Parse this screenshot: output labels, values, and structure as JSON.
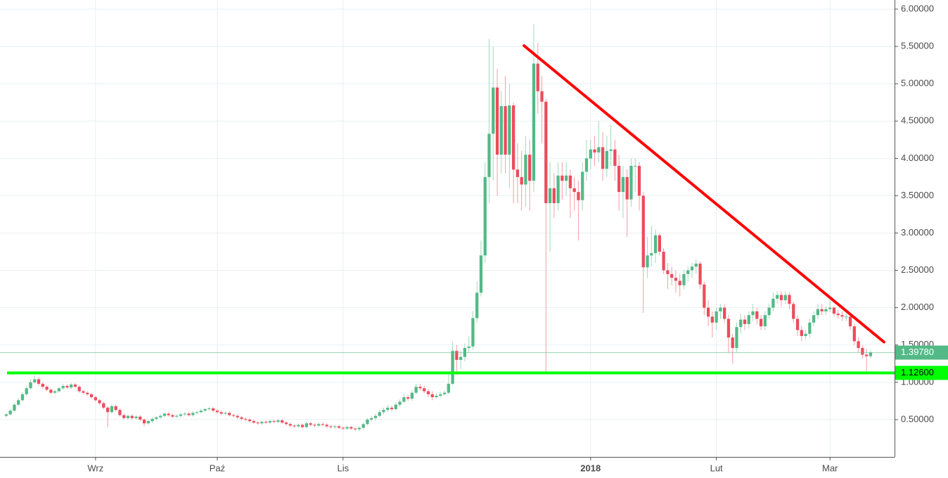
{
  "chart_data": {
    "type": "candlestick",
    "up_color": "#53b987",
    "down_color": "#eb4d5c",
    "grid": true,
    "ylim": [
      0,
      6.1224
    ],
    "yticks": [
      {
        "value": 0.5,
        "label": "0.50000"
      },
      {
        "value": 1,
        "label": "1.00000"
      },
      {
        "value": 1.5,
        "label": "1.50000"
      },
      {
        "value": 2,
        "label": "2.00000"
      },
      {
        "value": 2.5,
        "label": "2.50000"
      },
      {
        "value": 3,
        "label": "3.00000"
      },
      {
        "value": 3.5,
        "label": "3.50000"
      },
      {
        "value": 4,
        "label": "4.00000"
      },
      {
        "value": 4.5,
        "label": "4.50000"
      },
      {
        "value": 5,
        "label": "5.00000"
      },
      {
        "value": 5.5,
        "label": "5.50000"
      },
      {
        "value": 6,
        "label": "6.00000"
      }
    ],
    "categories": [
      null,
      null,
      null,
      null,
      null,
      null,
      null,
      null,
      null,
      null,
      null,
      null,
      null,
      null,
      null,
      null,
      null,
      null,
      null,
      null,
      null,
      null,
      "Wrz",
      null,
      null,
      null,
      null,
      null,
      null,
      null,
      null,
      null,
      null,
      null,
      null,
      null,
      null,
      null,
      null,
      null,
      null,
      null,
      null,
      null,
      null,
      null,
      null,
      null,
      null,
      null,
      null,
      null,
      "Paź",
      null,
      null,
      null,
      null,
      null,
      null,
      null,
      null,
      null,
      null,
      null,
      null,
      null,
      null,
      null,
      null,
      null,
      null,
      null,
      null,
      null,
      null,
      null,
      null,
      null,
      null,
      null,
      null,
      null,
      null,
      "Lis",
      null,
      null,
      null,
      null,
      null,
      null,
      null,
      null,
      null,
      null,
      null,
      null,
      null,
      null,
      null,
      null,
      null,
      null,
      null,
      null,
      null,
      null,
      null,
      null,
      null,
      null,
      null,
      null,
      null,
      null,
      null,
      null,
      null,
      null,
      null,
      null,
      null,
      null,
      null,
      null,
      null,
      null,
      null,
      null,
      null,
      null,
      null,
      null,
      null,
      null,
      null,
      null,
      null,
      null,
      null,
      null,
      null,
      null,
      null,
      null,
      "2018",
      null,
      null,
      null,
      null,
      null,
      null,
      null,
      null,
      null,
      null,
      null,
      null,
      null,
      null,
      null,
      null,
      null,
      null,
      null,
      null,
      null,
      null,
      null,
      null,
      null,
      null,
      null,
      null,
      null,
      null,
      "Lut",
      null,
      null,
      null,
      null,
      null,
      null,
      null,
      null,
      null,
      null,
      null,
      null,
      null,
      null,
      null,
      null,
      null,
      null,
      null,
      null,
      null,
      null,
      null,
      null,
      null,
      null,
      null,
      "Mar",
      null,
      null,
      null,
      null,
      null,
      null,
      null,
      null,
      null,
      null
    ],
    "open": [
      0.55,
      0.57,
      0.62,
      0.7,
      0.76,
      0.84,
      0.92,
      1.0,
      1.04,
      0.98,
      0.94,
      0.9,
      0.86,
      0.88,
      0.92,
      0.95,
      0.93,
      0.97,
      0.94,
      0.88,
      0.86,
      0.84,
      0.8,
      0.76,
      0.72,
      0.66,
      0.6,
      0.68,
      0.63,
      0.56,
      0.52,
      0.55,
      0.52,
      0.54,
      0.5,
      0.45,
      0.48,
      0.51,
      0.53,
      0.55,
      0.58,
      0.56,
      0.54,
      0.55,
      0.57,
      0.58,
      0.56,
      0.59,
      0.6,
      0.62,
      0.64,
      0.65,
      0.62,
      0.6,
      0.58,
      0.59,
      0.56,
      0.55,
      0.53,
      0.51,
      0.5,
      0.48,
      0.46,
      0.45,
      0.47,
      0.46,
      0.48,
      0.47,
      0.49,
      0.46,
      0.44,
      0.42,
      0.41,
      0.43,
      0.4,
      0.45,
      0.43,
      0.42,
      0.44,
      0.43,
      0.41,
      0.4,
      0.41,
      0.39,
      0.38,
      0.4,
      0.38,
      0.37,
      0.39,
      0.44,
      0.5,
      0.52,
      0.55,
      0.6,
      0.63,
      0.66,
      0.64,
      0.7,
      0.74,
      0.8,
      0.78,
      0.86,
      0.94,
      0.92,
      0.88,
      0.84,
      0.8,
      0.82,
      0.84,
      0.86,
      0.98,
      1.42,
      1.3,
      1.34,
      1.46,
      1.48,
      1.86,
      2.2,
      2.7,
      3.75,
      4.33,
      4.95,
      4.05,
      4.7,
      4.05,
      4.71,
      3.85,
      3.75,
      3.65,
      4.05,
      3.7,
      5.27,
      4.9,
      4.76,
      3.4,
      3.6,
      3.4,
      3.77,
      3.7,
      3.77,
      3.6,
      3.55,
      3.44,
      3.82,
      4.0,
      4.12,
      4.08,
      4.15,
      3.86,
      4.1,
      4.12,
      3.9,
      3.55,
      3.75,
      3.45,
      3.9,
      3.9,
      3.5,
      2.54,
      2.7,
      2.73,
      2.97,
      2.75,
      2.5,
      2.45,
      2.4,
      2.36,
      2.3,
      2.45,
      2.5,
      2.55,
      2.59,
      2.31,
      2.0,
      1.88,
      1.8,
      1.95,
      2.0,
      1.85,
      1.6,
      1.46,
      1.74,
      1.84,
      1.78,
      1.9,
      1.95,
      1.85,
      1.75,
      1.9,
      2.0,
      2.12,
      2.17,
      2.1,
      2.17,
      2.05,
      1.85,
      1.7,
      1.62,
      1.65,
      1.8,
      1.9,
      1.98,
      1.95,
      1.98,
      2.0,
      1.92,
      1.9,
      1.88,
      1.88,
      1.75,
      1.55,
      1.46,
      1.37,
      1.35
    ],
    "high": [
      0.59,
      0.64,
      0.72,
      0.79,
      0.87,
      0.95,
      1.04,
      1.09,
      1.07,
      1.0,
      0.96,
      0.92,
      0.9,
      0.94,
      0.98,
      0.97,
      0.99,
      0.99,
      0.96,
      0.9,
      0.88,
      0.86,
      0.82,
      0.78,
      0.74,
      0.68,
      0.71,
      0.7,
      0.65,
      0.58,
      0.57,
      0.57,
      0.56,
      0.56,
      0.52,
      0.5,
      0.53,
      0.55,
      0.57,
      0.6,
      0.6,
      0.58,
      0.57,
      0.59,
      0.6,
      0.6,
      0.61,
      0.62,
      0.64,
      0.66,
      0.67,
      0.67,
      0.64,
      0.62,
      0.61,
      0.61,
      0.58,
      0.57,
      0.55,
      0.53,
      0.52,
      0.5,
      0.48,
      0.49,
      0.49,
      0.5,
      0.5,
      0.51,
      0.51,
      0.48,
      0.46,
      0.44,
      0.45,
      0.45,
      0.47,
      0.47,
      0.45,
      0.46,
      0.46,
      0.45,
      0.43,
      0.43,
      0.43,
      0.41,
      0.42,
      0.42,
      0.4,
      0.41,
      0.46,
      0.52,
      0.55,
      0.58,
      0.63,
      0.66,
      0.7,
      0.69,
      0.73,
      0.77,
      0.84,
      0.83,
      0.89,
      0.98,
      0.98,
      0.95,
      0.91,
      0.88,
      0.85,
      0.87,
      0.89,
      1.12,
      1.55,
      1.5,
      1.42,
      1.52,
      1.62,
      1.95,
      2.35,
      2.9,
      3.95,
      5.6,
      5.5,
      5.2,
      4.9,
      5.1,
      5.0,
      4.75,
      4.2,
      4.1,
      4.3,
      4.25,
      5.8,
      5.55,
      5.1,
      4.8,
      3.95,
      3.8,
      3.95,
      3.95,
      3.95,
      3.85,
      3.75,
      3.7,
      3.95,
      4.25,
      4.25,
      4.3,
      4.5,
      4.35,
      4.3,
      4.45,
      4.25,
      4.05,
      3.9,
      3.85,
      4.0,
      4.0,
      3.95,
      3.55,
      2.95,
      3.1,
      3.05,
      3.0,
      2.8,
      2.6,
      2.55,
      2.5,
      2.45,
      2.5,
      2.55,
      2.6,
      2.65,
      2.62,
      2.35,
      2.1,
      1.95,
      2.0,
      2.05,
      2.05,
      1.9,
      1.65,
      1.8,
      1.92,
      1.9,
      1.95,
      2.05,
      2.0,
      1.9,
      1.95,
      2.05,
      2.2,
      2.22,
      2.22,
      2.22,
      2.2,
      2.08,
      1.9,
      1.75,
      1.7,
      1.85,
      1.95,
      2.05,
      2.05,
      2.02,
      2.1,
      2.02,
      1.97,
      1.95,
      1.92,
      1.9,
      1.78,
      1.6,
      1.5,
      1.45,
      1.43
    ],
    "low": [
      0.53,
      0.56,
      0.6,
      0.68,
      0.74,
      0.82,
      0.9,
      0.98,
      0.95,
      0.91,
      0.88,
      0.84,
      0.84,
      0.86,
      0.9,
      0.91,
      0.91,
      0.92,
      0.86,
      0.84,
      0.82,
      0.78,
      0.74,
      0.7,
      0.64,
      0.4,
      0.58,
      0.61,
      0.54,
      0.5,
      0.5,
      0.5,
      0.5,
      0.48,
      0.41,
      0.43,
      0.46,
      0.49,
      0.51,
      0.53,
      0.54,
      0.52,
      0.52,
      0.53,
      0.55,
      0.54,
      0.54,
      0.57,
      0.58,
      0.6,
      0.62,
      0.6,
      0.58,
      0.56,
      0.56,
      0.54,
      0.53,
      0.51,
      0.49,
      0.48,
      0.46,
      0.44,
      0.43,
      0.43,
      0.44,
      0.44,
      0.45,
      0.45,
      0.44,
      0.42,
      0.4,
      0.39,
      0.39,
      0.38,
      0.38,
      0.41,
      0.4,
      0.4,
      0.41,
      0.39,
      0.38,
      0.38,
      0.37,
      0.36,
      0.36,
      0.36,
      0.35,
      0.35,
      0.37,
      0.42,
      0.47,
      0.49,
      0.53,
      0.57,
      0.6,
      0.61,
      0.62,
      0.67,
      0.72,
      0.75,
      0.75,
      0.84,
      0.89,
      0.85,
      0.8,
      0.76,
      0.78,
      0.8,
      0.82,
      0.84,
      0.96,
      1.1,
      1.18,
      1.28,
      1.4,
      1.44,
      1.8,
      2.15,
      2.6,
      3.4,
      3.7,
      3.5,
      3.8,
      3.8,
      3.6,
      3.4,
      3.4,
      3.3,
      3.35,
      3.3,
      3.55,
      4.6,
      4.2,
      1.13,
      2.75,
      3.2,
      3.3,
      3.45,
      3.5,
      3.2,
      3.3,
      2.9,
      3.3,
      3.7,
      3.85,
      3.9,
      3.95,
      3.7,
      3.75,
      3.9,
      3.7,
      3.3,
      3.2,
      2.95,
      3.35,
      3.55,
      3.3,
      1.93,
      2.4,
      2.55,
      2.6,
      2.7,
      2.45,
      2.25,
      2.3,
      2.2,
      2.15,
      2.25,
      2.35,
      2.4,
      2.45,
      2.25,
      1.9,
      1.75,
      1.6,
      1.7,
      1.85,
      1.8,
      1.4,
      1.25,
      1.4,
      1.65,
      1.7,
      1.72,
      1.82,
      1.78,
      1.7,
      1.7,
      1.85,
      1.95,
      2.05,
      2.02,
      2.05,
      1.98,
      1.8,
      1.62,
      1.55,
      1.57,
      1.6,
      1.75,
      1.85,
      1.9,
      1.9,
      1.94,
      1.88,
      1.85,
      1.82,
      1.82,
      1.7,
      1.5,
      1.4,
      1.32,
      1.15,
      1.32
    ],
    "close": [
      0.57,
      0.62,
      0.7,
      0.76,
      0.84,
      0.92,
      1.0,
      1.04,
      0.98,
      0.94,
      0.9,
      0.86,
      0.88,
      0.92,
      0.95,
      0.93,
      0.97,
      0.94,
      0.88,
      0.86,
      0.84,
      0.8,
      0.76,
      0.72,
      0.66,
      0.6,
      0.68,
      0.63,
      0.56,
      0.52,
      0.55,
      0.52,
      0.54,
      0.5,
      0.45,
      0.48,
      0.51,
      0.53,
      0.55,
      0.58,
      0.56,
      0.54,
      0.55,
      0.57,
      0.58,
      0.56,
      0.59,
      0.6,
      0.62,
      0.64,
      0.65,
      0.62,
      0.6,
      0.58,
      0.59,
      0.56,
      0.55,
      0.53,
      0.51,
      0.5,
      0.48,
      0.46,
      0.45,
      0.47,
      0.46,
      0.48,
      0.47,
      0.49,
      0.46,
      0.44,
      0.42,
      0.41,
      0.43,
      0.4,
      0.45,
      0.43,
      0.42,
      0.44,
      0.43,
      0.41,
      0.4,
      0.41,
      0.39,
      0.38,
      0.4,
      0.38,
      0.37,
      0.39,
      0.44,
      0.5,
      0.52,
      0.55,
      0.6,
      0.63,
      0.66,
      0.64,
      0.7,
      0.74,
      0.8,
      0.78,
      0.86,
      0.94,
      0.92,
      0.88,
      0.84,
      0.8,
      0.82,
      0.84,
      0.86,
      0.98,
      1.42,
      1.3,
      1.34,
      1.46,
      1.48,
      1.86,
      2.2,
      2.7,
      3.75,
      4.33,
      4.95,
      4.05,
      4.7,
      4.05,
      4.71,
      3.85,
      3.75,
      3.65,
      4.05,
      3.7,
      5.27,
      4.9,
      4.76,
      3.4,
      3.6,
      3.4,
      3.77,
      3.7,
      3.77,
      3.6,
      3.55,
      3.44,
      3.82,
      4.0,
      4.12,
      4.08,
      4.15,
      3.86,
      4.1,
      4.12,
      3.9,
      3.55,
      3.75,
      3.45,
      3.9,
      3.9,
      3.5,
      2.54,
      2.7,
      2.73,
      2.97,
      2.75,
      2.5,
      2.45,
      2.4,
      2.36,
      2.3,
      2.45,
      2.5,
      2.55,
      2.59,
      2.31,
      2.0,
      1.88,
      1.8,
      1.95,
      2.0,
      1.85,
      1.6,
      1.46,
      1.74,
      1.84,
      1.78,
      1.9,
      1.95,
      1.85,
      1.75,
      1.9,
      2.0,
      2.12,
      2.17,
      2.1,
      2.17,
      2.05,
      1.85,
      1.7,
      1.62,
      1.65,
      1.8,
      1.9,
      1.98,
      1.95,
      1.98,
      2.0,
      1.92,
      1.9,
      1.88,
      1.88,
      1.75,
      1.55,
      1.46,
      1.37,
      1.35,
      1.4
    ],
    "last_price": {
      "value": 1.3978,
      "label": "1.39780",
      "color": "#53b987"
    },
    "support_line": {
      "value": 1.126,
      "label": "1.12600",
      "color": "#00ff00"
    },
    "trend_line": {
      "color": "#ff0000",
      "start": [
        127.6,
        5.51
      ],
      "end": [
        216.3,
        1.54
      ]
    }
  }
}
